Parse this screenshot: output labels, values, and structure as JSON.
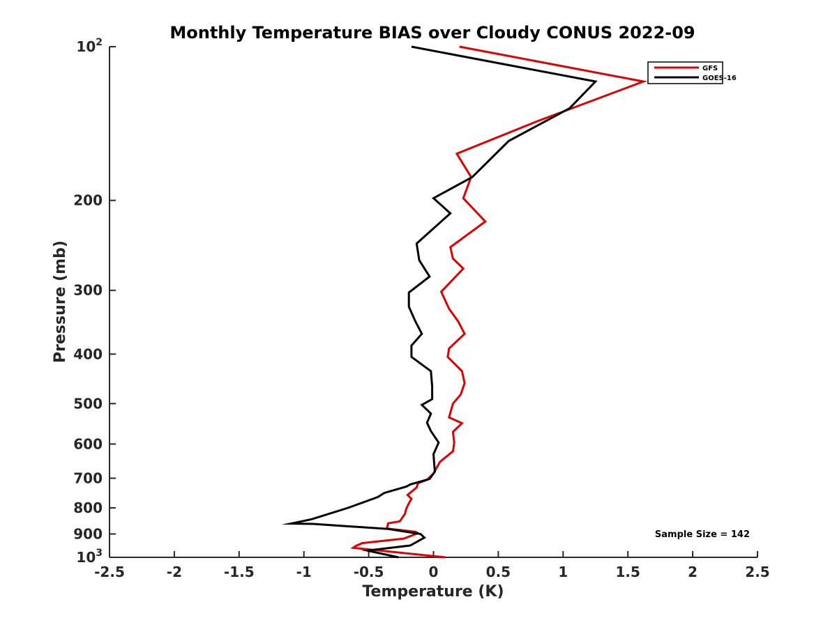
{
  "chart_data": {
    "type": "line",
    "title": "Monthly Temperature BIAS over Cloudy CONUS  2022-09",
    "xlabel": "Temperature (K)",
    "ylabel": "Pressure (mb)",
    "xlim": [
      -2.5,
      2.5
    ],
    "ylim": [
      100,
      1000
    ],
    "yscale": "log",
    "y_reversed": true,
    "x_ticks": [
      -2.5,
      -2,
      -1.5,
      -1,
      -0.5,
      0,
      0.5,
      1,
      1.5,
      2,
      2.5
    ],
    "x_tick_labels": [
      "-2.5",
      "-2",
      "-1.5",
      "-1",
      "-0.5",
      "0",
      "0.5",
      "1",
      "1.5",
      "2",
      "2.5"
    ],
    "y_ticks": [
      100,
      200,
      300,
      400,
      500,
      600,
      700,
      800,
      900,
      1000
    ],
    "y_tick_labels": [
      {
        "base": "10",
        "exp": "2"
      },
      {
        "base": "200",
        "exp": ""
      },
      {
        "base": "300",
        "exp": ""
      },
      {
        "base": "400",
        "exp": ""
      },
      {
        "base": "500",
        "exp": ""
      },
      {
        "base": "600",
        "exp": ""
      },
      {
        "base": "700",
        "exp": ""
      },
      {
        "base": "800",
        "exp": ""
      },
      {
        "base": "900",
        "exp": ""
      },
      {
        "base": "10",
        "exp": "3"
      }
    ],
    "grid": false,
    "legend_position": "top-right",
    "series": [
      {
        "name": "GFS",
        "color": "#e00000",
        "x": [
          0.2,
          1.62,
          0.8,
          0.18,
          0.29,
          0.23,
          0.4,
          0.13,
          0.15,
          0.23,
          0.06,
          0.12,
          0.19,
          0.24,
          0.12,
          0.11,
          0.22,
          0.24,
          0.21,
          0.15,
          0.12,
          0.22,
          0.15,
          0.16,
          0.15,
          0.05,
          0.0,
          -0.05,
          -0.12,
          -0.13,
          -0.2,
          -0.17,
          -0.19,
          -0.21,
          -0.22,
          -0.26,
          -0.35,
          -0.36,
          -0.14,
          -0.12,
          -0.23,
          -0.55,
          -0.6,
          -0.62,
          0.09
        ],
        "y": [
          100,
          117,
          140,
          162,
          180,
          198,
          220,
          247,
          260,
          272,
          302,
          326,
          345,
          365,
          390,
          405,
          432,
          456,
          480,
          500,
          532,
          546,
          568,
          596,
          620,
          650,
          685,
          705,
          716,
          730,
          755,
          768,
          784,
          803,
          822,
          850,
          858,
          878,
          891,
          897,
          919,
          938,
          950,
          958,
          1000
        ],
        "values": [
          0.2,
          1.62,
          0.8,
          0.18,
          0.29,
          0.23,
          0.4,
          0.13,
          0.15,
          0.23,
          0.06,
          0.12,
          0.19,
          0.24,
          0.12,
          0.11,
          0.22,
          0.24,
          0.21,
          0.15,
          0.12,
          0.22,
          0.15,
          0.16,
          0.15,
          0.05,
          0.0,
          -0.05,
          -0.12,
          -0.13,
          -0.2,
          -0.17,
          -0.19,
          -0.21,
          -0.22,
          -0.26,
          -0.35,
          -0.36,
          -0.14,
          -0.12,
          -0.23,
          -0.55,
          -0.6,
          -0.62,
          0.09
        ]
      },
      {
        "name": "GOES-16",
        "color": "#000000",
        "x": [
          -0.17,
          1.25,
          1.05,
          0.58,
          0.3,
          0.0,
          0.13,
          -0.13,
          -0.11,
          -0.03,
          -0.19,
          -0.19,
          -0.14,
          -0.09,
          -0.17,
          -0.17,
          -0.02,
          -0.01,
          -0.01,
          -0.09,
          -0.02,
          -0.05,
          -0.02,
          0.04,
          0.0,
          0.01,
          -0.03,
          -0.18,
          -0.21,
          -0.38,
          -0.43,
          -0.66,
          -0.94,
          -1.1,
          -0.93,
          -0.35,
          -0.1,
          -0.07,
          -0.18,
          -0.51,
          -0.27
        ],
        "y": [
          100,
          117,
          132,
          153,
          180,
          198,
          212,
          243,
          262,
          282,
          303,
          323,
          345,
          365,
          385,
          405,
          432,
          463,
          490,
          503,
          523,
          545,
          566,
          596,
          628,
          680,
          702,
          720,
          727,
          748,
          762,
          800,
          842,
          859,
          860,
          880,
          900,
          915,
          948,
          970,
          1000
        ],
        "values": [
          -0.17,
          1.25,
          1.05,
          0.58,
          0.3,
          0.0,
          0.13,
          -0.13,
          -0.11,
          -0.03,
          -0.19,
          -0.19,
          -0.14,
          -0.09,
          -0.17,
          -0.17,
          -0.02,
          -0.01,
          -0.01,
          -0.09,
          -0.02,
          -0.05,
          -0.02,
          0.04,
          0.0,
          0.01,
          -0.03,
          -0.18,
          -0.21,
          -0.38,
          -0.43,
          -0.66,
          -0.94,
          -1.1,
          -0.93,
          -0.35,
          -0.1,
          -0.07,
          -0.18,
          -0.51,
          -0.27
        ]
      }
    ],
    "annotations": [
      {
        "text": "Sample Size = 142",
        "position": "bottom-right"
      }
    ]
  }
}
